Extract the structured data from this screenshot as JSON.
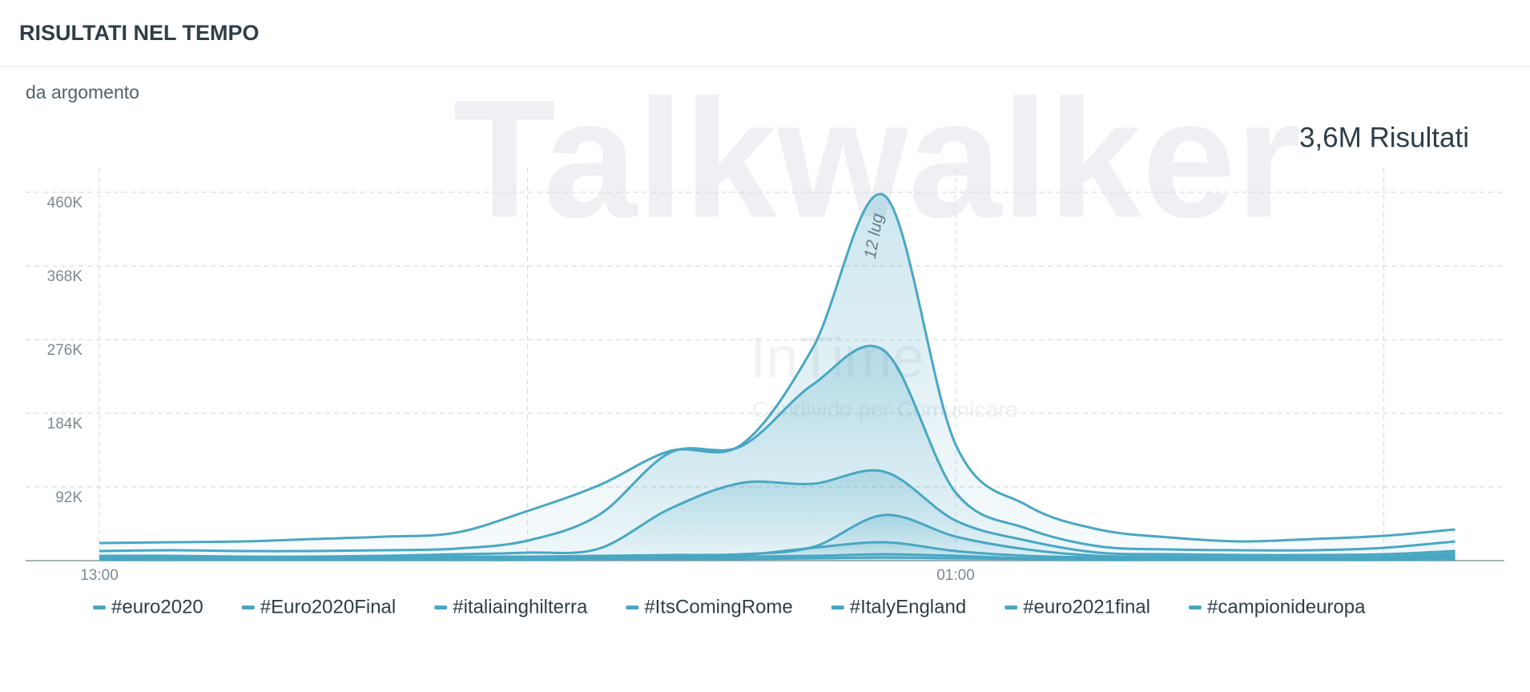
{
  "chart_data": {
    "type": "stacked-area",
    "title": "RISULTATI NEL TEMPO",
    "subtitle": "da argomento",
    "total": "3,6M Risultati",
    "annotation": "12 lug",
    "watermarks": [
      "Talkwalker",
      "InTime",
      "Condivido per Comunicare"
    ],
    "categories": [
      "13:00",
      null,
      null,
      null,
      null,
      null,
      null,
      null,
      null,
      null,
      null,
      null,
      "01:00",
      null,
      null,
      null,
      null,
      null,
      null,
      null
    ],
    "ylim": [
      0,
      460000
    ],
    "yticks": [
      {
        "value": 92000,
        "label": "92K"
      },
      {
        "value": 184000,
        "label": "184K"
      },
      {
        "value": 276000,
        "label": "276K"
      },
      {
        "value": 368000,
        "label": "368K"
      },
      {
        "value": 460000,
        "label": "460K"
      }
    ],
    "grid": true,
    "series": [
      {
        "name": "#euro2020",
        "color": "#49a7c3",
        "values": [
          10000,
          10000,
          12000,
          15000,
          17000,
          20000,
          37000,
          37000,
          2000,
          2000,
          46000,
          194000,
          60000,
          29000,
          21000,
          15000,
          11000,
          14000,
          15000,
          15000
        ]
      },
      {
        "name": "#Euro2020Final",
        "color": "#49a7c3",
        "values": [
          6000,
          7000,
          7000,
          7000,
          7000,
          7000,
          15000,
          42000,
          70000,
          46000,
          124000,
          151000,
          35000,
          15000,
          8000,
          6000,
          6000,
          6000,
          8000,
          12000
        ]
      },
      {
        "name": "#italiainghilterra",
        "color": "#49a7c3",
        "values": [
          2000,
          2000,
          1000,
          1000,
          2000,
          3000,
          5000,
          9000,
          58000,
          89000,
          79000,
          54000,
          20000,
          11000,
          4000,
          3000,
          3000,
          3000,
          3000,
          3000
        ]
      },
      {
        "name": "#ItsComingRome",
        "color": "#49a7c3",
        "values": [
          1000,
          1000,
          1000,
          1000,
          1000,
          1000,
          1000,
          1000,
          1000,
          1000,
          1000,
          34000,
          18000,
          8000,
          2000,
          2000,
          1000,
          1000,
          1000,
          3000
        ]
      },
      {
        "name": "#ItalyEngland",
        "color": "#49a7c3",
        "values": [
          1000,
          1000,
          1000,
          1000,
          1000,
          1000,
          1000,
          2000,
          2000,
          2000,
          10000,
          15000,
          6000,
          3000,
          2000,
          1000,
          1000,
          1000,
          1000,
          2000
        ]
      },
      {
        "name": "#euro2021final",
        "color": "#49a7c3",
        "values": [
          1000,
          1000,
          1000,
          1000,
          1000,
          2000,
          2000,
          1000,
          2000,
          3000,
          3000,
          4000,
          3000,
          1000,
          1000,
          1000,
          1000,
          1000,
          2000,
          2000
        ]
      },
      {
        "name": "#campionideuropa",
        "color": "#49a7c3",
        "values": [
          1000,
          1000,
          1000,
          1000,
          1000,
          1000,
          1000,
          2000,
          2000,
          2000,
          3000,
          4000,
          3000,
          2000,
          1000,
          1000,
          1000,
          1000,
          1000,
          2000
        ]
      }
    ]
  }
}
